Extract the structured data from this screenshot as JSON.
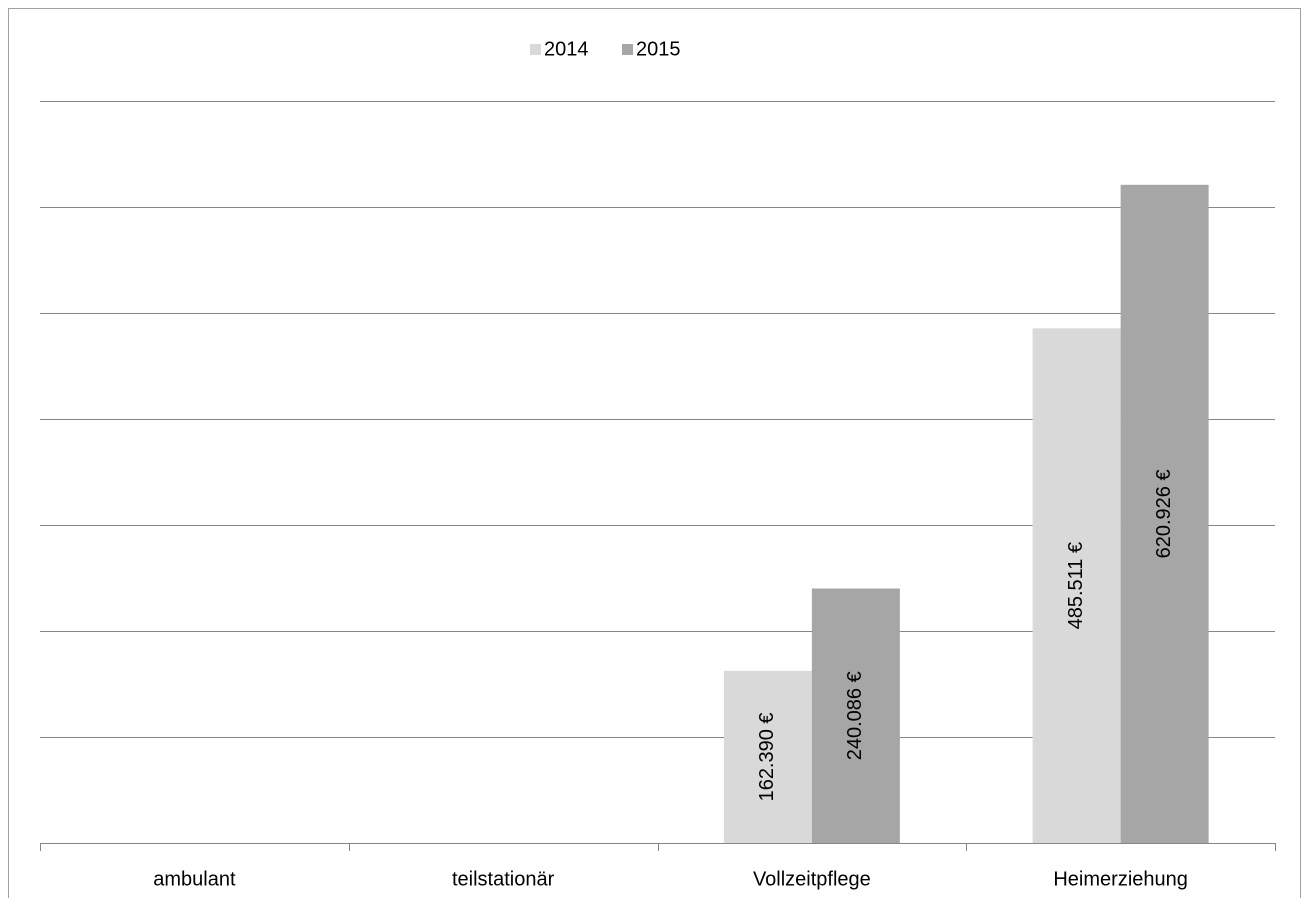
{
  "chart_data": {
    "type": "bar",
    "categories": [
      "ambulant",
      "teilstationär",
      "Vollzeitpflege",
      "Heimerziehung"
    ],
    "series": [
      {
        "name": "2014",
        "color": "#d9d9d9",
        "values": [
          null,
          null,
          162390,
          485511
        ],
        "value_labels": [
          null,
          null,
          "162.390 €",
          "485.511 €"
        ]
      },
      {
        "name": "2015",
        "color": "#a6a6a6",
        "values": [
          null,
          null,
          240086,
          620926
        ],
        "value_labels": [
          null,
          null,
          "240.086 €",
          "620.926 €"
        ]
      }
    ],
    "ylim": [
      0,
      700000
    ],
    "yticks": [
      0,
      100000,
      200000,
      300000,
      400000,
      500000,
      600000,
      700000
    ],
    "grid": true,
    "legend": "top"
  }
}
